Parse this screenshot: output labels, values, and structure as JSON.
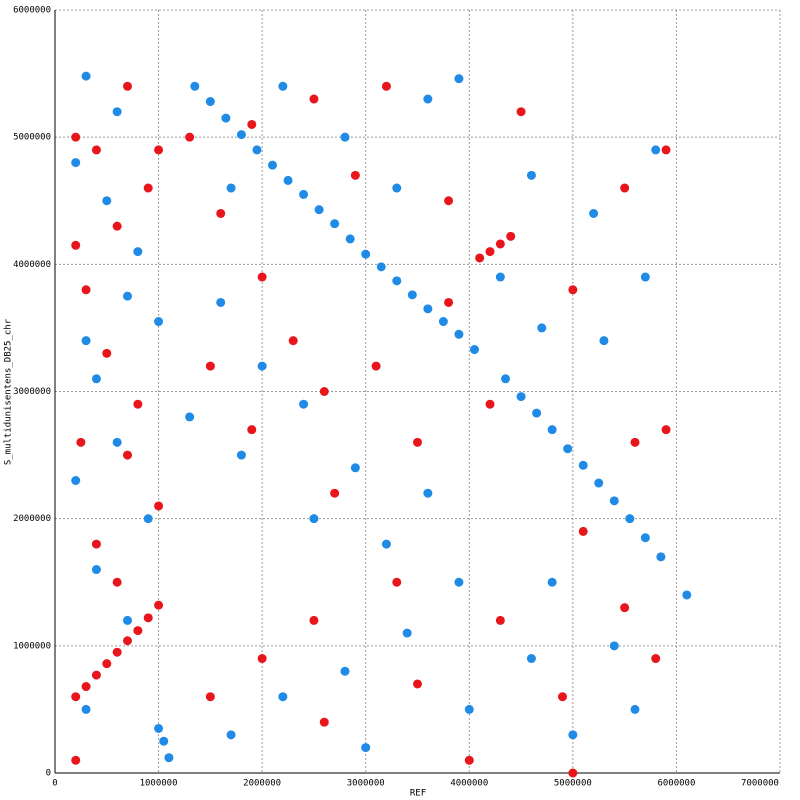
{
  "chart_data": {
    "type": "scatter",
    "xlabel": "REF",
    "ylabel": "S_multidunisentens_DB25_chr",
    "xlim": [
      0,
      7000000
    ],
    "ylim": [
      0,
      6000000
    ],
    "xticks": [
      0,
      1000000,
      2000000,
      3000000,
      4000000,
      5000000,
      6000000,
      7000000
    ],
    "yticks": [
      0,
      1000000,
      2000000,
      3000000,
      4000000,
      5000000,
      6000000
    ],
    "grid": true,
    "series": [
      {
        "color": "#1f8be6",
        "x": [
          1350000,
          1500000,
          1650000,
          1800000,
          1950000,
          2100000,
          2250000,
          2400000,
          2550000,
          2700000,
          2850000,
          3000000,
          3150000,
          3300000,
          3450000,
          3600000,
          3750000,
          3900000,
          4050000,
          4350000,
          4500000,
          4650000,
          4800000,
          4950000,
          5100000,
          5250000,
          5400000,
          5550000,
          5700000,
          5850000,
          1000000,
          1050000,
          1100000,
          300000,
          600000,
          200000,
          500000,
          800000,
          300000,
          700000,
          1000000,
          400000,
          600000,
          200000,
          900000,
          400000,
          700000,
          300000,
          1600000,
          2000000,
          1300000,
          1800000,
          2400000,
          2900000,
          2500000,
          3200000,
          3600000,
          3900000,
          3400000,
          2800000,
          2200000,
          1700000,
          3000000,
          4000000,
          4600000,
          5000000,
          5400000,
          4800000,
          5300000,
          5700000,
          5200000,
          4600000,
          3600000,
          3900000,
          2800000,
          2200000,
          1700000,
          3300000,
          4300000,
          4700000,
          5800000,
          6100000,
          5600000
        ],
        "values": [
          5400000,
          5280000,
          5150000,
          5020000,
          4900000,
          4780000,
          4660000,
          4550000,
          4430000,
          4320000,
          4200000,
          4080000,
          3980000,
          3870000,
          3760000,
          3650000,
          3550000,
          3450000,
          3330000,
          3100000,
          2960000,
          2830000,
          2700000,
          2550000,
          2420000,
          2280000,
          2140000,
          2000000,
          1850000,
          1700000,
          350000,
          250000,
          120000,
          5480000,
          5200000,
          4800000,
          4500000,
          4100000,
          3400000,
          3750000,
          3550000,
          3100000,
          2600000,
          2300000,
          2000000,
          1600000,
          1200000,
          500000,
          3700000,
          3200000,
          2800000,
          2500000,
          2900000,
          2400000,
          2000000,
          1800000,
          2200000,
          1500000,
          1100000,
          800000,
          600000,
          300000,
          200000,
          500000,
          900000,
          300000,
          1000000,
          1500000,
          3400000,
          3900000,
          4400000,
          4700000,
          5300000,
          5460000,
          5000000,
          5400000,
          4600000,
          4600000,
          3900000,
          3500000,
          4900000,
          1400000,
          500000
        ]
      },
      {
        "color": "#e8161c",
        "x": [
          200000,
          300000,
          400000,
          500000,
          600000,
          700000,
          800000,
          900000,
          1000000,
          4100000,
          4200000,
          4300000,
          4400000,
          200000,
          400000,
          700000,
          1000000,
          200000,
          600000,
          900000,
          300000,
          500000,
          800000,
          250000,
          700000,
          1000000,
          400000,
          600000,
          200000,
          1300000,
          1600000,
          2000000,
          1500000,
          1900000,
          2300000,
          2600000,
          3100000,
          2700000,
          3500000,
          3800000,
          4200000,
          3300000,
          2500000,
          2000000,
          1500000,
          2600000,
          3500000,
          4300000,
          4900000,
          5500000,
          5800000,
          5100000,
          5600000,
          5900000,
          5000000,
          5500000,
          5900000,
          4500000,
          3200000,
          2500000,
          1900000,
          3800000,
          2900000,
          4000000,
          5000000
        ],
        "values": [
          600000,
          680000,
          770000,
          860000,
          950000,
          1040000,
          1120000,
          1220000,
          1320000,
          4050000,
          4100000,
          4160000,
          4220000,
          5000000,
          4900000,
          5400000,
          4900000,
          4150000,
          4300000,
          4600000,
          3800000,
          3300000,
          2900000,
          2600000,
          2500000,
          2100000,
          1800000,
          1500000,
          100000,
          5000000,
          4400000,
          3900000,
          3200000,
          2700000,
          3400000,
          3000000,
          3200000,
          2200000,
          2600000,
          3700000,
          2900000,
          1500000,
          1200000,
          900000,
          600000,
          400000,
          700000,
          1200000,
          600000,
          1300000,
          900000,
          1900000,
          2600000,
          2700000,
          3800000,
          4600000,
          4900000,
          5200000,
          5400000,
          5300000,
          5100000,
          4500000,
          4700000,
          100000,
          0
        ]
      }
    ]
  }
}
